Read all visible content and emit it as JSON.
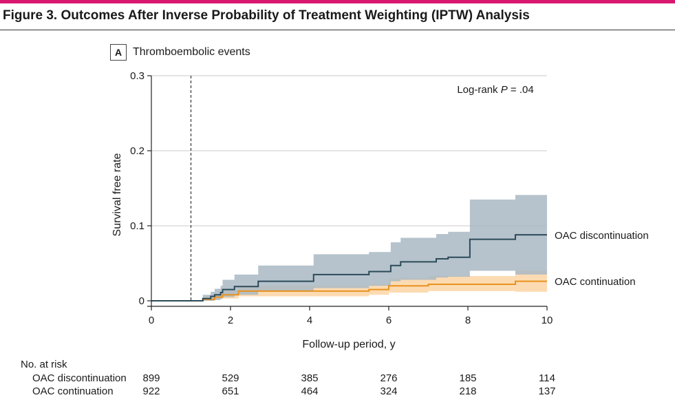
{
  "figure_title": "Figure 3. Outcomes After Inverse Probability of Treatment Weighting (IPTW) Analysis",
  "panel": {
    "letter": "A",
    "title": "Thromboembolic events"
  },
  "annotation_prefix": "Log-rank ",
  "annotation_p": "P",
  "annotation_suffix": " = .04",
  "colors": {
    "accent": "#d8186f",
    "discontinuation": "#2b4a58",
    "discontinuation_ci": "#a9b9c3",
    "continuation": "#e8921e",
    "continuation_ci": "#fdd7aa"
  },
  "chart_data": {
    "type": "line",
    "title": "Thromboembolic events",
    "xlabel": "Follow-up period, y",
    "ylabel": "Survival free rate",
    "xlim": [
      0,
      10
    ],
    "ylim": [
      0,
      0.3
    ],
    "x_ticks": [
      0,
      2,
      4,
      6,
      8,
      10
    ],
    "x_tick_labels": [
      "0",
      "2",
      "4",
      "6",
      "8",
      "10"
    ],
    "y_ticks": [
      0,
      0.1,
      0.2,
      0.3
    ],
    "y_tick_labels": [
      "0",
      "0.1",
      "0.2",
      "0.3"
    ],
    "grid": "horizontal",
    "reference_line_x": 1,
    "series": [
      {
        "name": "OAC discontinuation",
        "step": true,
        "x": [
          0,
          1.3,
          1.5,
          1.6,
          1.75,
          1.8,
          2.1,
          2.7,
          4.1,
          5.5,
          6.05,
          6.3,
          7.2,
          7.5,
          8.05,
          9.2,
          10
        ],
        "y": [
          0,
          0.003,
          0.006,
          0.008,
          0.011,
          0.015,
          0.019,
          0.026,
          0.035,
          0.039,
          0.047,
          0.052,
          0.056,
          0.058,
          0.082,
          0.088,
          0.088
        ],
        "lower": [
          0,
          0.0,
          0.0,
          0.001,
          0.003,
          0.005,
          0.008,
          0.012,
          0.017,
          0.02,
          0.026,
          0.028,
          0.031,
          0.032,
          0.04,
          0.035,
          0.035
        ],
        "upper": [
          0,
          0.008,
          0.012,
          0.016,
          0.02,
          0.028,
          0.035,
          0.047,
          0.062,
          0.065,
          0.078,
          0.084,
          0.089,
          0.092,
          0.135,
          0.141,
          0.141
        ]
      },
      {
        "name": "OAC continuation",
        "step": true,
        "x": [
          0,
          1.3,
          1.6,
          1.8,
          2.2,
          5.5,
          6.0,
          7.0,
          9.2,
          10
        ],
        "y": [
          0,
          0.002,
          0.005,
          0.008,
          0.013,
          0.015,
          0.02,
          0.022,
          0.026,
          0.026
        ],
        "lower": [
          0,
          0.0,
          0.002,
          0.003,
          0.006,
          0.008,
          0.011,
          0.013,
          0.012,
          0.012
        ],
        "upper": [
          0,
          0.005,
          0.009,
          0.014,
          0.02,
          0.022,
          0.03,
          0.033,
          0.04,
          0.04
        ]
      }
    ]
  },
  "risk_table": {
    "title": "No. at risk",
    "rows": [
      {
        "label": "OAC discontinuation",
        "values": [
          "899",
          "529",
          "385",
          "276",
          "185",
          "114"
        ]
      },
      {
        "label": "OAC continuation",
        "values": [
          "922",
          "651",
          "464",
          "324",
          "218",
          "137"
        ]
      }
    ]
  }
}
